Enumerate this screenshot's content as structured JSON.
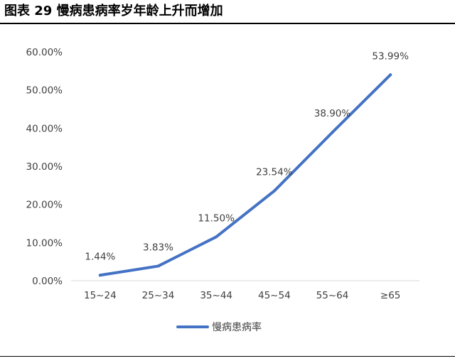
{
  "figure": {
    "title": "图表 29 慢病患病率岁年龄上升而增加"
  },
  "chart_data": {
    "type": "line",
    "categories": [
      "15~24",
      "25~34",
      "35~44",
      "45~54",
      "55~64",
      "≥65"
    ],
    "series": [
      {
        "name": "慢病患病率",
        "values": [
          1.44,
          3.83,
          11.5,
          23.54,
          38.9,
          53.99
        ],
        "data_labels": [
          "1.44%",
          "3.83%",
          "11.50%",
          "23.54%",
          "38.90%",
          "53.99%"
        ],
        "color": "#4472C4"
      }
    ],
    "ylim": [
      0,
      60
    ],
    "yticks": [
      0,
      10,
      20,
      30,
      40,
      50,
      60
    ],
    "ytick_labels": [
      "0.00%",
      "10.00%",
      "20.00%",
      "30.00%",
      "40.00%",
      "50.00%",
      "60.00%"
    ],
    "grid": false,
    "legend_position": "bottom"
  }
}
